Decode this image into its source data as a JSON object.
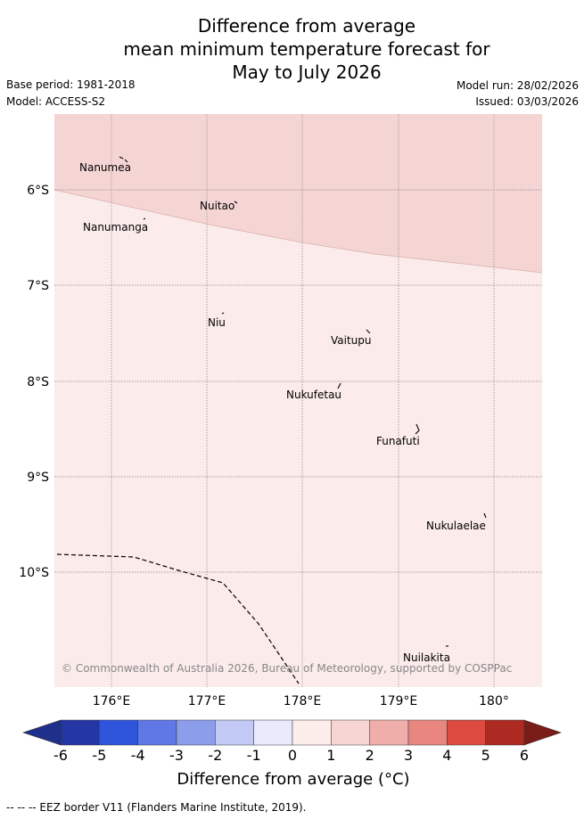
{
  "title": {
    "line1": "Difference from average",
    "line2": "mean minimum temperature forecast for",
    "line3": "May to July 2026"
  },
  "meta": {
    "base_period": "Base period: 1981-2018",
    "model": "Model: ACCESS-S2",
    "model_run": "Model run: 28/02/2026",
    "issued": "Issued: 03/03/2026"
  },
  "map": {
    "lat_labels": [
      "6°S",
      "7°S",
      "8°S",
      "9°S",
      "10°S"
    ],
    "lon_labels": [
      "176°E",
      "177°E",
      "178°E",
      "179°E",
      "180°"
    ],
    "islands": [
      "Nanumea",
      "Nuitao",
      "Nanumanga",
      "Niu",
      "Vaitupu",
      "Nukufetau",
      "Funafuti",
      "Nukulaelae",
      "Nuilakita"
    ],
    "copyright": "© Commonwealth of Australia 2026, Bureau of Meteorology, supported by COSPPac",
    "anomaly_regions": [
      {
        "category": "1 to 2",
        "color": "#f5d5d4"
      },
      {
        "category": "0 to 1",
        "color": "#fbebea"
      }
    ]
  },
  "colorbar": {
    "ticks": [
      "-6",
      "-5",
      "-4",
      "-3",
      "-2",
      "-1",
      "0",
      "1",
      "2",
      "3",
      "4",
      "5",
      "6"
    ],
    "colors": [
      "#2436a4",
      "#2f55dc",
      "#5f78e5",
      "#8c9dec",
      "#c2c9f5",
      "#e9eafb",
      "#fcecea",
      "#f6d5d3",
      "#efaeaa",
      "#e98680",
      "#db4b3f",
      "#ad2a23"
    ],
    "under_color": "#1f2f8c",
    "over_color": "#7a1c18",
    "label": "Difference from average (°C)"
  },
  "footer": "-- -- -- EEZ border V11 (Flanders Marine Institute, 2019)."
}
